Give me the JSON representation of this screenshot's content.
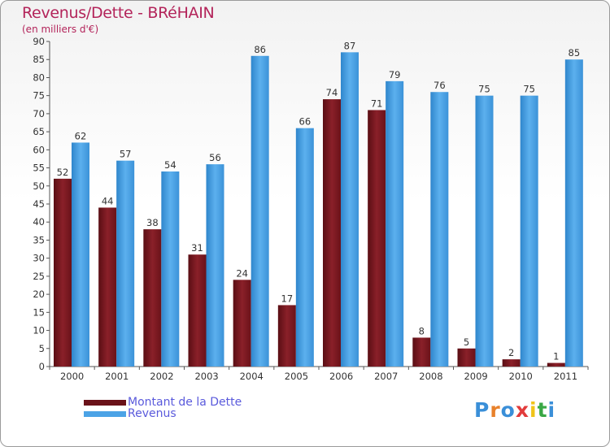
{
  "title": "Revenus/Dette - BRéHAIN",
  "subtitle": "(en milliers d'€)",
  "colors": {
    "dette": "#7d1a22",
    "revenus": "#4ba3e6",
    "title": "#b3245a",
    "legend_text": "#5a5adc"
  },
  "legend": {
    "dette_label": "Montant de la Dette",
    "revenus_label": "Revenus"
  },
  "logo": {
    "letters": [
      "P",
      "r",
      "o",
      "x",
      "i",
      "t",
      "i"
    ],
    "colors": [
      "#3a8fd8",
      "#e8812b",
      "#3a8fd8",
      "#e23b3b",
      "#f0c419",
      "#3aa845",
      "#3a8fd8"
    ]
  },
  "chart_data": {
    "type": "bar",
    "title": "Revenus/Dette - BRéHAIN",
    "ylabel": "(en milliers d'€)",
    "xlabel": "",
    "categories": [
      "2000",
      "2001",
      "2002",
      "2003",
      "2004",
      "2005",
      "2006",
      "2007",
      "2008",
      "2009",
      "2010",
      "2011"
    ],
    "series": [
      {
        "name": "Montant de la Dette",
        "values": [
          52,
          44,
          38,
          31,
          24,
          17,
          74,
          71,
          8,
          5,
          2,
          1
        ]
      },
      {
        "name": "Revenus",
        "values": [
          62,
          57,
          54,
          56,
          86,
          66,
          87,
          79,
          76,
          75,
          75,
          85
        ]
      }
    ],
    "ylim": [
      0,
      90
    ],
    "yticks": [
      0,
      5,
      10,
      15,
      20,
      25,
      30,
      35,
      40,
      45,
      50,
      55,
      60,
      65,
      70,
      75,
      80,
      85,
      90
    ],
    "grid": false,
    "legend": "bottom-left"
  }
}
